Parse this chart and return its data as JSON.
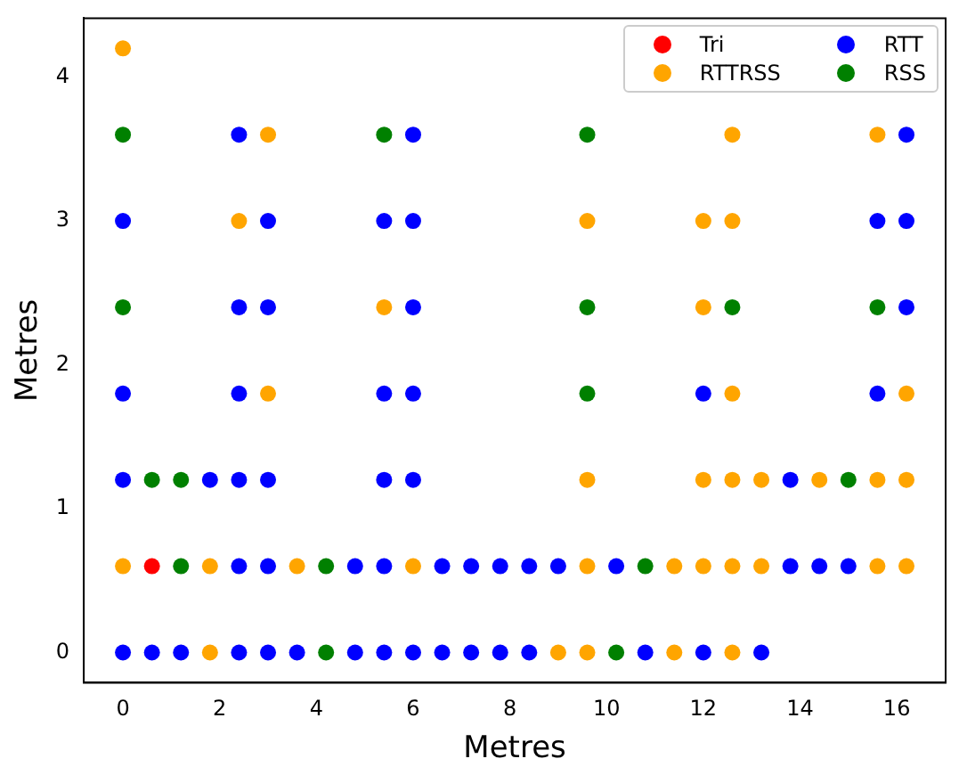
{
  "chart_data": {
    "type": "scatter",
    "xlabel": "Metres",
    "ylabel": "Metres",
    "xlim": [
      -0.81,
      17.01
    ],
    "ylim": [
      -0.21,
      4.41
    ],
    "xticks": [
      0,
      2,
      4,
      6,
      8,
      10,
      12,
      14,
      16
    ],
    "yticks": [
      0,
      1,
      2,
      3,
      4
    ],
    "grid": false,
    "legend": "top right",
    "marker": "circle",
    "series": [
      {
        "name": "Tri",
        "color": "#ff0000",
        "x": [
          0.6
        ],
        "values": [
          0.6
        ]
      },
      {
        "name": "RTT",
        "color": "#0000ff",
        "x": [
          0,
          0.6,
          1.2,
          2.4,
          3.0,
          3.6,
          4.8,
          5.4,
          6.0,
          6.6,
          7.2,
          7.8,
          8.4,
          10.8,
          12.0,
          13.2,
          2.4,
          3.0,
          4.8,
          5.4,
          6.6,
          7.2,
          7.8,
          8.4,
          9.0,
          10.2,
          13.8,
          14.4,
          15.0,
          0,
          1.8,
          2.4,
          3.0,
          5.4,
          6.0,
          13.8,
          0,
          2.4,
          5.4,
          6.0,
          12.0,
          15.6,
          2.4,
          3.0,
          6.0,
          16.2,
          0,
          3.0,
          5.4,
          6.0,
          15.6,
          16.2,
          2.4,
          6.0,
          16.2
        ],
        "values": [
          0,
          0,
          0,
          0,
          0,
          0,
          0,
          0,
          0,
          0,
          0,
          0,
          0,
          0,
          0,
          0,
          0.6,
          0.6,
          0.6,
          0.6,
          0.6,
          0.6,
          0.6,
          0.6,
          0.6,
          0.6,
          0.6,
          0.6,
          0.6,
          1.2,
          1.2,
          1.2,
          1.2,
          1.2,
          1.2,
          1.2,
          1.8,
          1.8,
          1.8,
          1.8,
          1.8,
          1.8,
          2.4,
          2.4,
          2.4,
          2.4,
          3.0,
          3.0,
          3.0,
          3.0,
          3.0,
          3.0,
          3.6,
          3.6,
          3.6
        ]
      },
      {
        "name": "RTTRSS",
        "color": "#ffa500",
        "x": [
          1.8,
          9.0,
          9.6,
          11.4,
          12.6,
          0,
          1.8,
          3.6,
          6.0,
          9.6,
          11.4,
          12.0,
          12.6,
          13.2,
          15.6,
          16.2,
          9.6,
          12.0,
          12.6,
          13.2,
          14.4,
          15.6,
          16.2,
          3.0,
          12.6,
          16.2,
          5.4,
          12.0,
          2.4,
          9.6,
          12.0,
          12.6,
          3.0,
          12.6,
          15.6,
          0
        ],
        "values": [
          0,
          0,
          0,
          0,
          0,
          0.6,
          0.6,
          0.6,
          0.6,
          0.6,
          0.6,
          0.6,
          0.6,
          0.6,
          0.6,
          0.6,
          1.2,
          1.2,
          1.2,
          1.2,
          1.2,
          1.2,
          1.2,
          1.8,
          1.8,
          1.8,
          2.4,
          2.4,
          3.0,
          3.0,
          3.0,
          3.0,
          3.6,
          3.6,
          3.6,
          4.2
        ]
      },
      {
        "name": "RSS",
        "color": "#008000",
        "x": [
          4.2,
          10.2,
          1.2,
          4.2,
          10.8,
          0.6,
          1.2,
          15.0,
          9.6,
          0,
          9.6,
          12.6,
          15.6,
          0,
          5.4,
          9.6
        ],
        "values": [
          0,
          0,
          0.6,
          0.6,
          0.6,
          1.2,
          1.2,
          1.2,
          1.8,
          2.4,
          2.4,
          2.4,
          2.4,
          3.6,
          3.6,
          3.6
        ]
      }
    ]
  }
}
